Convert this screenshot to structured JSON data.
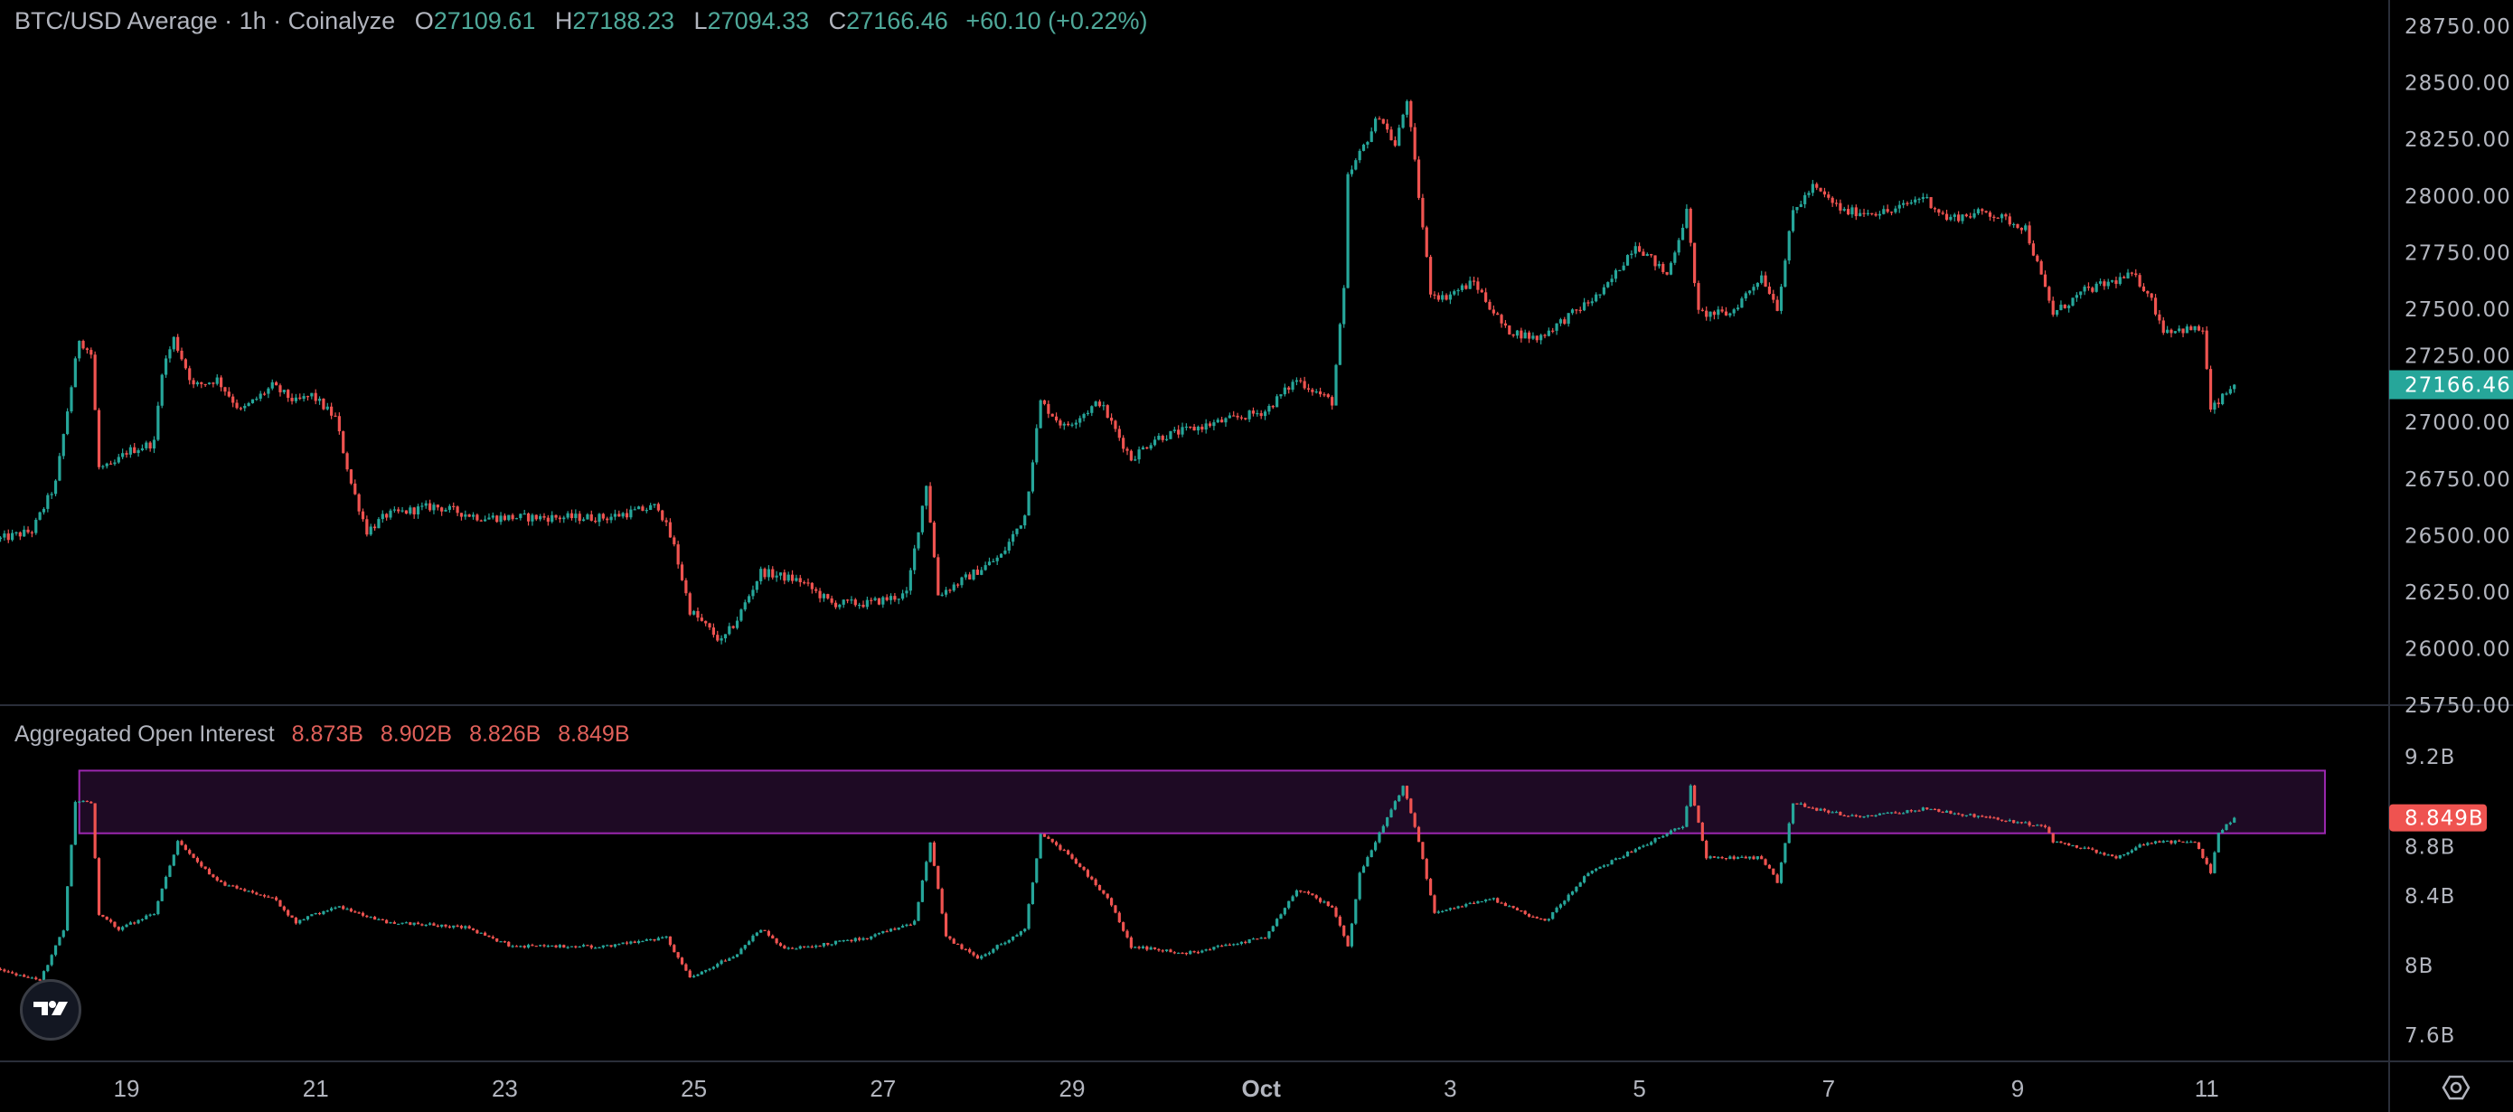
{
  "header": {
    "title": "BTC/USD Average · 1h · Coinalyze",
    "open_label": "O",
    "open": "27109.61",
    "high_label": "H",
    "high": "27188.23",
    "low_label": "L",
    "low": "27094.33",
    "close_label": "C",
    "close": "27166.46",
    "change": "+60.10 (+0.22%)"
  },
  "oi_header": {
    "title": "Aggregated Open Interest",
    "open": "8.873B",
    "high": "8.902B",
    "low": "8.826B",
    "close": "8.849B"
  },
  "colors": {
    "up": "#26a69a",
    "down": "#ef5350",
    "background": "#000000",
    "rectangle_border": "#9c27b0",
    "rectangle_fill": "#1e0a24"
  },
  "icons": {
    "logo": "tradingview-logo",
    "settings": "gear-icon"
  },
  "chart_data": [
    {
      "type": "candlestick",
      "interval": "1h",
      "title": "BTC/USD Average · 1h · Coinalyze",
      "y_ticks": [
        "28750.00",
        "28500.00",
        "28250.00",
        "28000.00",
        "27750.00",
        "27500.00",
        "27250.00",
        "27000.00",
        "26750.00",
        "26500.00",
        "26250.00",
        "26000.00",
        "25750.00"
      ],
      "ylim": [
        25750,
        28750
      ],
      "last_price": "27166.46",
      "close_path": [
        [
          "09-17 16",
          26485
        ],
        [
          "09-18 00",
          26520
        ],
        [
          "09-18 06",
          26730
        ],
        [
          "09-18 10",
          27160
        ],
        [
          "09-18 12",
          27370
        ],
        [
          "09-18 15",
          27300
        ],
        [
          "09-18 17",
          26800
        ],
        [
          "09-18 20",
          26800
        ],
        [
          "09-19 00",
          26870
        ],
        [
          "09-19 07",
          26910
        ],
        [
          "09-19 09",
          27230
        ],
        [
          "09-19 12",
          27370
        ],
        [
          "09-19 17",
          27160
        ],
        [
          "09-19 23",
          27190
        ],
        [
          "09-20 05",
          27050
        ],
        [
          "09-20 13",
          27160
        ],
        [
          "09-20 19",
          27090
        ],
        [
          "09-20 23",
          27120
        ],
        [
          "09-21 05",
          27020
        ],
        [
          "09-21 09",
          26730
        ],
        [
          "09-21 13",
          26520
        ],
        [
          "09-21 18",
          26590
        ],
        [
          "09-22 06",
          26630
        ],
        [
          "09-22 18",
          26580
        ],
        [
          "09-23 10",
          26580
        ],
        [
          "09-24 02",
          26580
        ],
        [
          "09-24 15",
          26630
        ],
        [
          "09-24 19",
          26450
        ],
        [
          "09-24 23",
          26170
        ],
        [
          "09-25 07",
          26030
        ],
        [
          "09-25 11",
          26130
        ],
        [
          "09-25 17",
          26340
        ],
        [
          "09-26 03",
          26300
        ],
        [
          "09-26 11",
          26200
        ],
        [
          "09-26 20",
          26200
        ],
        [
          "09-27 06",
          26240
        ],
        [
          "09-27 11",
          26730
        ],
        [
          "09-27 14",
          26240
        ],
        [
          "09-27 20",
          26300
        ],
        [
          "09-28 06",
          26410
        ],
        [
          "09-28 12",
          26590
        ],
        [
          "09-28 16",
          27090
        ],
        [
          "09-28 22",
          26980
        ],
        [
          "09-29 07",
          27090
        ],
        [
          "09-29 15",
          26840
        ],
        [
          "09-29 21",
          26930
        ],
        [
          "09-30 13",
          27000
        ],
        [
          "10-01 01",
          27050
        ],
        [
          "10-01 09",
          27190
        ],
        [
          "10-01 18",
          27090
        ],
        [
          "10-01 21",
          27580
        ],
        [
          "10-01 22",
          28080
        ],
        [
          "10-02 06",
          28360
        ],
        [
          "10-02 10",
          28220
        ],
        [
          "10-02 13",
          28430
        ],
        [
          "10-02 16",
          28000
        ],
        [
          "10-02 19",
          27580
        ],
        [
          "10-02 22",
          27550
        ],
        [
          "10-03 06",
          27620
        ],
        [
          "10-03 14",
          27410
        ],
        [
          "10-03 22",
          27370
        ],
        [
          "10-04 07",
          27480
        ],
        [
          "10-04 15",
          27580
        ],
        [
          "10-04 23",
          27790
        ],
        [
          "10-05 07",
          27650
        ],
        [
          "10-05 12",
          27930
        ],
        [
          "10-05 15",
          27480
        ],
        [
          "10-05 23",
          27480
        ],
        [
          "10-06 07",
          27650
        ],
        [
          "10-06 11",
          27510
        ],
        [
          "10-06 15",
          27930
        ],
        [
          "10-06 20",
          28040
        ],
        [
          "10-07 04",
          27930
        ],
        [
          "10-07 16",
          27930
        ],
        [
          "10-08 00",
          28000
        ],
        [
          "10-08 06",
          27900
        ],
        [
          "10-08 16",
          27930
        ],
        [
          "10-09 02",
          27860
        ],
        [
          "10-09 09",
          27480
        ],
        [
          "10-09 17",
          27580
        ],
        [
          "10-10 05",
          27650
        ],
        [
          "10-10 09",
          27580
        ],
        [
          "10-10 13",
          27410
        ],
        [
          "10-10 23",
          27410
        ],
        [
          "10-11 01",
          27050
        ],
        [
          "10-11 07",
          27166.46
        ]
      ]
    },
    {
      "type": "candlestick",
      "interval": "1h",
      "title": "Aggregated Open Interest",
      "y_ticks": [
        "9.2B",
        "8.8B",
        "8.4B",
        "8B",
        "7.6B"
      ],
      "ylim": [
        7.6,
        9.2
      ],
      "unit": "B",
      "last_value": "8.849B",
      "close_path": [
        [
          "09-17 16",
          7.98
        ],
        [
          "09-18 02",
          7.91
        ],
        [
          "09-18 08",
          8.21
        ],
        [
          "09-18 11",
          8.94
        ],
        [
          "09-18 15",
          8.94
        ],
        [
          "09-18 17",
          8.3
        ],
        [
          "09-18 22",
          8.21
        ],
        [
          "09-19 07",
          8.3
        ],
        [
          "09-19 13",
          8.71
        ],
        [
          "09-19 17",
          8.62
        ],
        [
          "09-19 23",
          8.48
        ],
        [
          "09-20 13",
          8.39
        ],
        [
          "09-20 19",
          8.25
        ],
        [
          "09-21 05",
          8.34
        ],
        [
          "09-21 18",
          8.25
        ],
        [
          "09-22 14",
          8.22
        ],
        [
          "09-23 02",
          8.11
        ],
        [
          "09-24 02",
          8.11
        ],
        [
          "09-24 17",
          8.16
        ],
        [
          "09-24 23",
          7.93
        ],
        [
          "09-25 11",
          8.07
        ],
        [
          "09-25 17",
          8.21
        ],
        [
          "09-25 23",
          8.09
        ],
        [
          "09-26 20",
          8.16
        ],
        [
          "09-27 08",
          8.25
        ],
        [
          "09-27 12",
          8.71
        ],
        [
          "09-27 16",
          8.16
        ],
        [
          "09-28 00",
          8.04
        ],
        [
          "09-28 12",
          8.21
        ],
        [
          "09-28 16",
          8.76
        ],
        [
          "09-29 00",
          8.62
        ],
        [
          "09-29 09",
          8.39
        ],
        [
          "09-29 15",
          8.11
        ],
        [
          "09-30 05",
          8.07
        ],
        [
          "10-01 01",
          8.16
        ],
        [
          "10-01 09",
          8.44
        ],
        [
          "10-01 18",
          8.34
        ],
        [
          "10-01 22",
          8.11
        ],
        [
          "10-02 01",
          8.53
        ],
        [
          "10-02 06",
          8.76
        ],
        [
          "10-02 12",
          9.03
        ],
        [
          "10-02 16",
          8.71
        ],
        [
          "10-02 20",
          8.3
        ],
        [
          "10-03 10",
          8.39
        ],
        [
          "10-04 00",
          8.25
        ],
        [
          "10-04 11",
          8.53
        ],
        [
          "10-04 23",
          8.67
        ],
        [
          "10-05 11",
          8.8
        ],
        [
          "10-05 13",
          9.03
        ],
        [
          "10-05 17",
          8.62
        ],
        [
          "10-06 07",
          8.62
        ],
        [
          "10-06 11",
          8.48
        ],
        [
          "10-06 15",
          8.94
        ],
        [
          "10-06 20",
          8.9
        ],
        [
          "10-07 08",
          8.85
        ],
        [
          "10-08 00",
          8.9
        ],
        [
          "10-08 16",
          8.85
        ],
        [
          "10-09 07",
          8.8
        ],
        [
          "10-09 09",
          8.71
        ],
        [
          "10-09 17",
          8.67
        ],
        [
          "10-10 01",
          8.62
        ],
        [
          "10-10 09",
          8.71
        ],
        [
          "10-10 21",
          8.71
        ],
        [
          "10-11 01",
          8.53
        ],
        [
          "10-11 03",
          8.76
        ],
        [
          "10-11 07",
          8.849
        ]
      ],
      "annotation_rectangle": {
        "from": "09-18 12",
        "to": "10-12 06",
        "low": 8.76,
        "high": 9.12
      }
    }
  ],
  "x_ticks": [
    [
      "09-19 00",
      "19"
    ],
    [
      "09-21 00",
      "21"
    ],
    [
      "09-23 00",
      "23"
    ],
    [
      "09-25 00",
      "25"
    ],
    [
      "09-27 00",
      "27"
    ],
    [
      "09-29 00",
      "29"
    ],
    [
      "10-01 00",
      "Oct"
    ],
    [
      "10-03 00",
      "3"
    ],
    [
      "10-05 00",
      "5"
    ],
    [
      "10-07 00",
      "7"
    ],
    [
      "10-09 00",
      "9"
    ],
    [
      "10-11 00",
      "11"
    ]
  ]
}
